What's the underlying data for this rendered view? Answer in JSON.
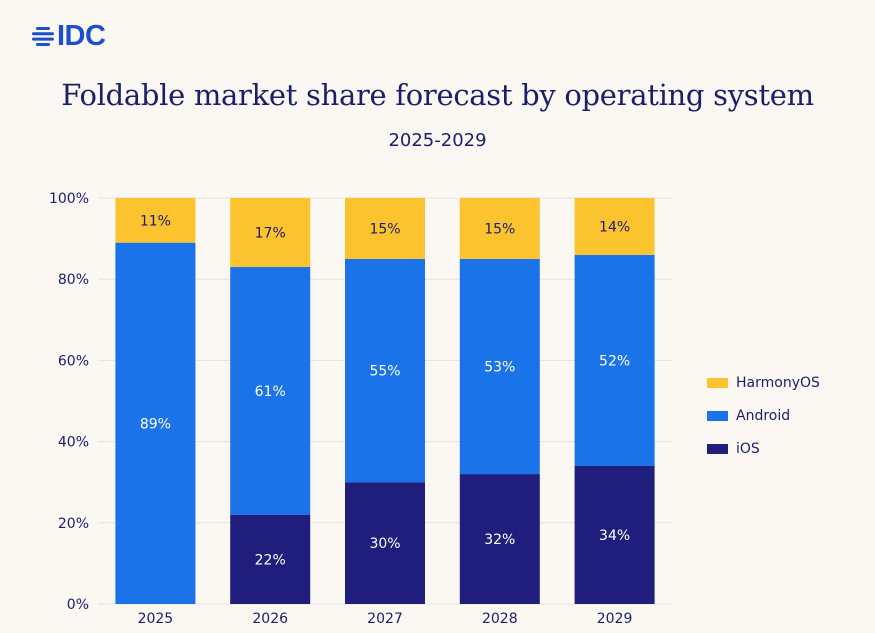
{
  "logo": {
    "text": "IDC"
  },
  "chart_data": {
    "type": "bar",
    "stacked": true,
    "title": "Foldable market share forecast by operating system",
    "subtitle": "2025-2029",
    "categories": [
      "2025",
      "2026",
      "2027",
      "2028",
      "2029"
    ],
    "series": [
      {
        "name": "iOS",
        "values": [
          0,
          22,
          30,
          32,
          34
        ],
        "labels": [
          "",
          "22%",
          "30%",
          "32%",
          "34%"
        ],
        "color": "#1f1e7d"
      },
      {
        "name": "Android",
        "values": [
          89,
          61,
          55,
          53,
          52
        ],
        "labels": [
          "89%",
          "61%",
          "55%",
          "53%",
          "52%"
        ],
        "color": "#1a73e8"
      },
      {
        "name": "HarmonyOS",
        "values": [
          11,
          17,
          15,
          15,
          14
        ],
        "labels": [
          "11%",
          "17%",
          "15%",
          "15%",
          "14%"
        ],
        "color": "#fbc32d"
      }
    ],
    "legend_order": [
      "HarmonyOS",
      "Android",
      "iOS"
    ],
    "yticks": [
      "0%",
      "20%",
      "40%",
      "60%",
      "80%",
      "100%"
    ],
    "ylim": [
      0,
      100
    ],
    "grid": true,
    "legend_position": "right"
  }
}
